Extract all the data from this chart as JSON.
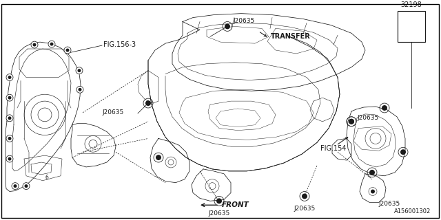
{
  "bg_color": "#ffffff",
  "line_color": "#1a1a1a",
  "border_color": "#000000",
  "labels": {
    "fig156_3": "FIG.156-3",
    "j20635_a": "J20635",
    "j20635_b": "J20635",
    "j20635_transfer": "J20635",
    "transfer": "TRANSFER",
    "fig154": "FIG.154",
    "j20635_bot1": "J20635",
    "j20635_bot2": "J20635",
    "j20635_bot3": "J20635",
    "part_num": "32198",
    "front": "FRONT",
    "diagram_id": "A156001302"
  },
  "font_size": 6.5,
  "lw": 0.55
}
